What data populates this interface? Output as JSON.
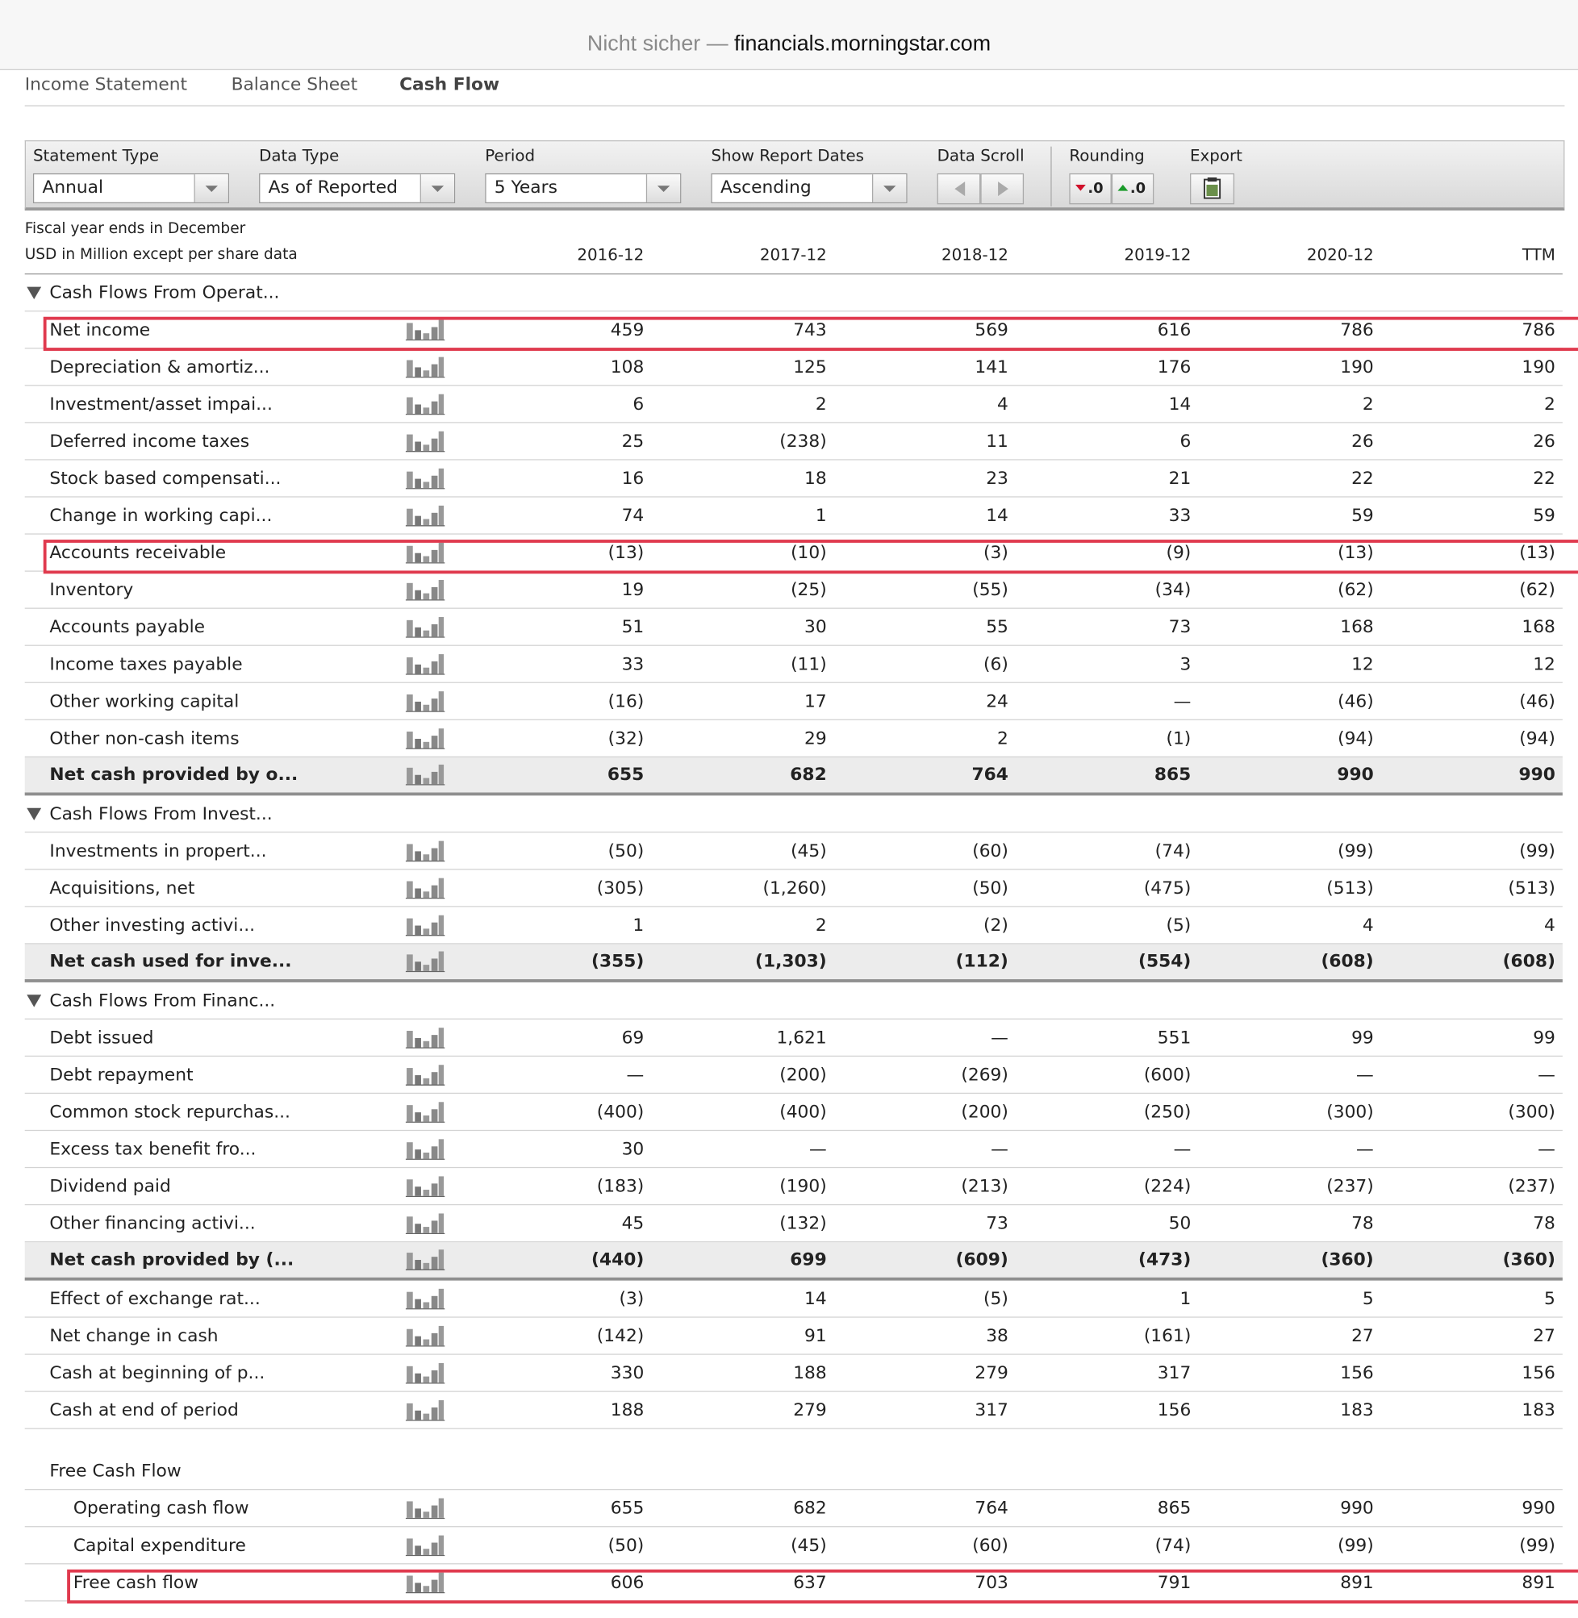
{
  "browser": {
    "security": "Nicht sicher —",
    "url": "financials.morningstar.com"
  },
  "tabs": [
    "Income Statement",
    "Balance Sheet",
    "Cash Flow"
  ],
  "active_tab": 2,
  "toolbar": {
    "statement_type": {
      "label": "Statement Type",
      "value": "Annual"
    },
    "data_type": {
      "label": "Data Type",
      "value": "As of Reported"
    },
    "period": {
      "label": "Period",
      "value": "5 Years"
    },
    "report_dates": {
      "label": "Show Report Dates",
      "value": "Ascending"
    },
    "data_scroll": {
      "label": "Data Scroll"
    },
    "rounding": {
      "label": "Rounding",
      "buttons": [
        ".0",
        ".0"
      ]
    },
    "export": {
      "label": "Export"
    }
  },
  "table": {
    "notes": [
      "Fiscal year ends in December",
      "USD in Million except per share data"
    ],
    "columns": [
      "2016-12",
      "2017-12",
      "2018-12",
      "2019-12",
      "2020-12",
      "TTM"
    ],
    "sections": [
      {
        "title": "Cash Flows From Operat...",
        "rows": [
          {
            "label": "Net income",
            "values": [
              "459",
              "743",
              "569",
              "616",
              "786",
              "786"
            ],
            "highlighted": true
          },
          {
            "label": "Depreciation & amortiz...",
            "values": [
              "108",
              "125",
              "141",
              "176",
              "190",
              "190"
            ]
          },
          {
            "label": "Investment/asset impai...",
            "values": [
              "6",
              "2",
              "4",
              "14",
              "2",
              "2"
            ]
          },
          {
            "label": "Deferred income taxes",
            "values": [
              "25",
              "(238)",
              "11",
              "6",
              "26",
              "26"
            ]
          },
          {
            "label": "Stock based compensati...",
            "values": [
              "16",
              "18",
              "23",
              "21",
              "22",
              "22"
            ]
          },
          {
            "label": "Change in working capi...",
            "values": [
              "74",
              "1",
              "14",
              "33",
              "59",
              "59"
            ]
          },
          {
            "label": "Accounts receivable",
            "values": [
              "(13)",
              "(10)",
              "(3)",
              "(9)",
              "(13)",
              "(13)"
            ],
            "highlighted": true
          },
          {
            "label": "Inventory",
            "values": [
              "19",
              "(25)",
              "(55)",
              "(34)",
              "(62)",
              "(62)"
            ]
          },
          {
            "label": "Accounts payable",
            "values": [
              "51",
              "30",
              "55",
              "73",
              "168",
              "168"
            ]
          },
          {
            "label": "Income taxes payable",
            "values": [
              "33",
              "(11)",
              "(6)",
              "3",
              "12",
              "12"
            ]
          },
          {
            "label": "Other working capital",
            "values": [
              "(16)",
              "17",
              "24",
              "—",
              "(46)",
              "(46)"
            ]
          },
          {
            "label": "Other non-cash items",
            "values": [
              "(32)",
              "29",
              "2",
              "(1)",
              "(94)",
              "(94)"
            ]
          }
        ],
        "total": {
          "label": "Net cash provided by o...",
          "values": [
            "655",
            "682",
            "764",
            "865",
            "990",
            "990"
          ]
        }
      },
      {
        "title": "Cash Flows From Invest...",
        "rows": [
          {
            "label": "Investments in propert...",
            "values": [
              "(50)",
              "(45)",
              "(60)",
              "(74)",
              "(99)",
              "(99)"
            ]
          },
          {
            "label": "Acquisitions, net",
            "values": [
              "(305)",
              "(1,260)",
              "(50)",
              "(475)",
              "(513)",
              "(513)"
            ]
          },
          {
            "label": "Other investing activi...",
            "values": [
              "1",
              "2",
              "(2)",
              "(5)",
              "4",
              "4"
            ]
          }
        ],
        "total": {
          "label": "Net cash used for inve...",
          "values": [
            "(355)",
            "(1,303)",
            "(112)",
            "(554)",
            "(608)",
            "(608)"
          ]
        }
      },
      {
        "title": "Cash Flows From Financ...",
        "rows": [
          {
            "label": "Debt issued",
            "values": [
              "69",
              "1,621",
              "—",
              "551",
              "99",
              "99"
            ]
          },
          {
            "label": "Debt repayment",
            "values": [
              "—",
              "(200)",
              "(269)",
              "(600)",
              "—",
              "—"
            ]
          },
          {
            "label": "Common stock repurchas...",
            "values": [
              "(400)",
              "(400)",
              "(200)",
              "(250)",
              "(300)",
              "(300)"
            ]
          },
          {
            "label": "Excess tax benefit fro...",
            "values": [
              "30",
              "—",
              "—",
              "—",
              "—",
              "—"
            ]
          },
          {
            "label": "Dividend paid",
            "values": [
              "(183)",
              "(190)",
              "(213)",
              "(224)",
              "(237)",
              "(237)"
            ]
          },
          {
            "label": "Other financing activi...",
            "values": [
              "45",
              "(132)",
              "73",
              "50",
              "78",
              "78"
            ]
          }
        ],
        "total": {
          "label": "Net cash provided by (...",
          "values": [
            "(440)",
            "699",
            "(609)",
            "(473)",
            "(360)",
            "(360)"
          ]
        }
      }
    ],
    "other_rows": [
      {
        "label": "Effect of exchange rat...",
        "values": [
          "(3)",
          "14",
          "(5)",
          "1",
          "5",
          "5"
        ]
      },
      {
        "label": "Net change in cash",
        "values": [
          "(142)",
          "91",
          "38",
          "(161)",
          "27",
          "27"
        ]
      },
      {
        "label": "Cash at beginning of p...",
        "values": [
          "330",
          "188",
          "279",
          "317",
          "156",
          "156"
        ]
      },
      {
        "label": "Cash at end of period",
        "values": [
          "188",
          "279",
          "317",
          "156",
          "183",
          "183"
        ]
      }
    ],
    "free_cash_flow": {
      "title": "Free Cash Flow",
      "rows": [
        {
          "label": "Operating cash flow",
          "values": [
            "655",
            "682",
            "764",
            "865",
            "990",
            "990"
          ]
        },
        {
          "label": "Capital expenditure",
          "values": [
            "(50)",
            "(45)",
            "(60)",
            "(74)",
            "(99)",
            "(99)"
          ]
        },
        {
          "label": "Free cash flow",
          "values": [
            "606",
            "637",
            "703",
            "791",
            "891",
            "891"
          ],
          "highlighted": true
        }
      ]
    }
  }
}
